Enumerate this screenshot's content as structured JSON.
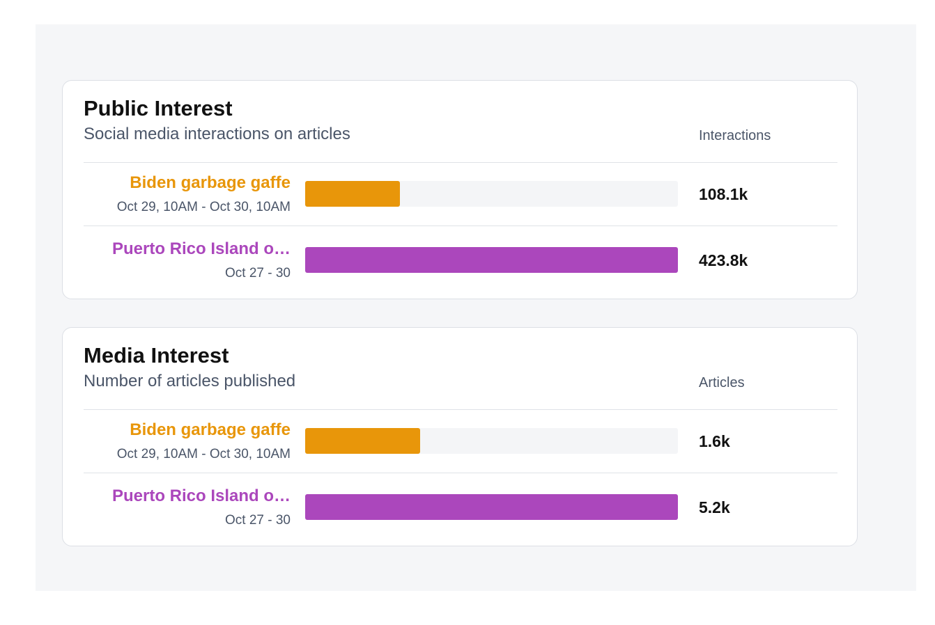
{
  "colors": {
    "biden": "#e8960a",
    "puerto_rico": "#ab47bc"
  },
  "cards": [
    {
      "title": "Public Interest",
      "subtitle": "Social media interactions on articles",
      "column_header": "Interactions",
      "rows": [
        {
          "label": "Biden garbage gaffe",
          "date": "Oct 29, 10AM - Oct 30, 10AM",
          "value": "108.1k"
        },
        {
          "label": "Puerto Rico Island o…",
          "date": "Oct 27 - 30",
          "value": "423.8k"
        }
      ]
    },
    {
      "title": "Media Interest",
      "subtitle": "Number of articles published",
      "column_header": "Articles",
      "rows": [
        {
          "label": "Biden garbage gaffe",
          "date": "Oct 29, 10AM - Oct 30, 10AM",
          "value": "1.6k"
        },
        {
          "label": "Puerto Rico Island o…",
          "date": "Oct 27 - 30",
          "value": "5.2k"
        }
      ]
    }
  ],
  "chart_data": [
    {
      "type": "bar",
      "title": "Public Interest",
      "subtitle": "Social media interactions on articles",
      "ylabel": "Interactions",
      "categories": [
        "Biden garbage gaffe",
        "Puerto Rico Island o…"
      ],
      "values": [
        108100,
        423800
      ],
      "ylim": [
        0,
        423800
      ]
    },
    {
      "type": "bar",
      "title": "Media Interest",
      "subtitle": "Number of articles published",
      "ylabel": "Articles",
      "categories": [
        "Biden garbage gaffe",
        "Puerto Rico Island o…"
      ],
      "values": [
        1600,
        5200
      ],
      "ylim": [
        0,
        5200
      ]
    }
  ]
}
